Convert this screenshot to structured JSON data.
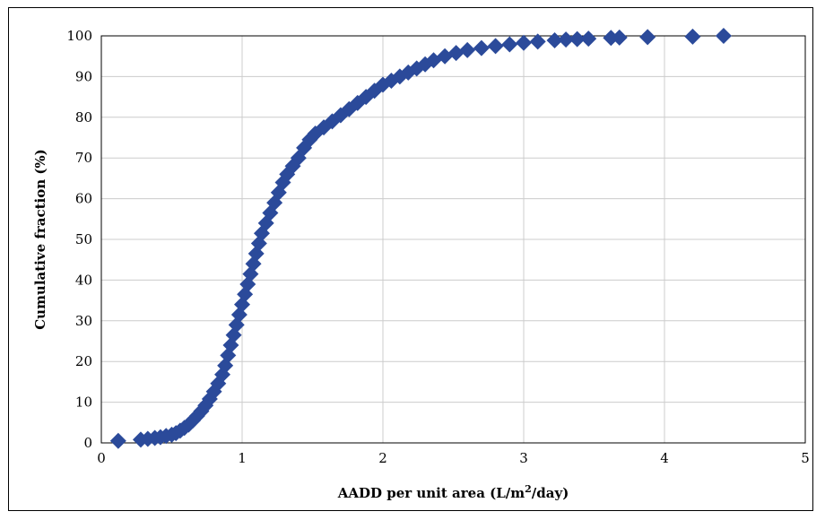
{
  "chart_data": {
    "type": "scatter",
    "xlabel": "AADD per unit area (L/m",
    "xlabel_sup": "2",
    "xlabel_tail": "/day)",
    "ylabel": "Cumulative fraction (%)",
    "xlim": [
      0,
      5
    ],
    "ylim": [
      0,
      100
    ],
    "x_ticks": [
      "0",
      "1",
      "2",
      "3",
      "4",
      "5"
    ],
    "y_ticks": [
      "0",
      "10",
      "20",
      "30",
      "40",
      "50",
      "60",
      "70",
      "80",
      "90",
      "100"
    ],
    "grid": true,
    "marker": "diamond",
    "color": "#2B4A9A",
    "points": [
      [
        0.12,
        0.5
      ],
      [
        0.28,
        0.8
      ],
      [
        0.33,
        1.0
      ],
      [
        0.38,
        1.2
      ],
      [
        0.42,
        1.4
      ],
      [
        0.46,
        1.7
      ],
      [
        0.5,
        2.0
      ],
      [
        0.53,
        2.4
      ],
      [
        0.56,
        3.0
      ],
      [
        0.59,
        3.7
      ],
      [
        0.62,
        4.5
      ],
      [
        0.65,
        5.5
      ],
      [
        0.68,
        6.6
      ],
      [
        0.71,
        7.8
      ],
      [
        0.74,
        9.2
      ],
      [
        0.77,
        10.8
      ],
      [
        0.8,
        12.6
      ],
      [
        0.83,
        14.6
      ],
      [
        0.86,
        16.8
      ],
      [
        0.88,
        19.0
      ],
      [
        0.9,
        21.5
      ],
      [
        0.92,
        24.0
      ],
      [
        0.94,
        26.5
      ],
      [
        0.96,
        29.0
      ],
      [
        0.98,
        31.5
      ],
      [
        1.0,
        34.0
      ],
      [
        1.02,
        36.5
      ],
      [
        1.04,
        39.0
      ],
      [
        1.06,
        41.5
      ],
      [
        1.08,
        44.0
      ],
      [
        1.1,
        46.5
      ],
      [
        1.12,
        49.0
      ],
      [
        1.14,
        51.5
      ],
      [
        1.17,
        54.0
      ],
      [
        1.2,
        56.5
      ],
      [
        1.23,
        59.0
      ],
      [
        1.26,
        61.5
      ],
      [
        1.29,
        64.0
      ],
      [
        1.32,
        66.0
      ],
      [
        1.36,
        68.0
      ],
      [
        1.4,
        70.0
      ],
      [
        1.44,
        72.5
      ],
      [
        1.48,
        74.5
      ],
      [
        1.52,
        76.0
      ],
      [
        1.58,
        77.5
      ],
      [
        1.64,
        79.0
      ],
      [
        1.7,
        80.5
      ],
      [
        1.76,
        82.0
      ],
      [
        1.82,
        83.5
      ],
      [
        1.88,
        85.0
      ],
      [
        1.94,
        86.5
      ],
      [
        2.0,
        88.0
      ],
      [
        2.06,
        89.0
      ],
      [
        2.12,
        90.0
      ],
      [
        2.18,
        91.0
      ],
      [
        2.24,
        92.0
      ],
      [
        2.3,
        93.0
      ],
      [
        2.36,
        94.0
      ],
      [
        2.44,
        95.0
      ],
      [
        2.52,
        95.8
      ],
      [
        2.6,
        96.5
      ],
      [
        2.7,
        97.0
      ],
      [
        2.8,
        97.5
      ],
      [
        2.9,
        97.9
      ],
      [
        3.0,
        98.3
      ],
      [
        3.1,
        98.6
      ],
      [
        3.22,
        98.9
      ],
      [
        3.3,
        99.1
      ],
      [
        3.38,
        99.2
      ],
      [
        3.46,
        99.3
      ],
      [
        3.62,
        99.5
      ],
      [
        3.68,
        99.6
      ],
      [
        3.88,
        99.7
      ],
      [
        4.2,
        99.8
      ],
      [
        4.42,
        100.0
      ]
    ]
  }
}
